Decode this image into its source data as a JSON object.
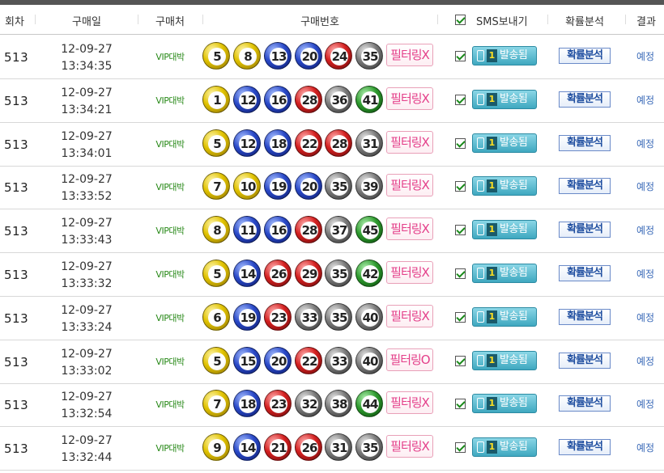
{
  "headers": {
    "round": "회차",
    "date": "구매일",
    "store": "구매처",
    "numbers": "구매번호",
    "sms": "SMS보내기",
    "analysis": "확률분석",
    "result": "결과"
  },
  "colors": {
    "yellow": "#e0c200",
    "blue": "#2a49c8",
    "red": "#d42020",
    "gray": "#7a7a7a",
    "green": "#2e9a2e",
    "filter_text": "#e4408a",
    "sms_button": "#3fa8c0",
    "store_text": "#2a8a1a",
    "result_text": "#3a6ab8"
  },
  "rows": [
    {
      "round": "513",
      "date": "12-09-27",
      "time": "13:34:35",
      "store": "VIP대박",
      "balls": [
        {
          "n": "5",
          "c": "y"
        },
        {
          "n": "8",
          "c": "y"
        },
        {
          "n": "13",
          "c": "b"
        },
        {
          "n": "20",
          "c": "b"
        },
        {
          "n": "24",
          "c": "r"
        },
        {
          "n": "35",
          "c": "k"
        }
      ],
      "filter": "필터링X",
      "sms_count": "1",
      "sms_label": "발송됨",
      "analysis": "확률분석",
      "result": "예정"
    },
    {
      "round": "513",
      "date": "12-09-27",
      "time": "13:34:21",
      "store": "VIP대박",
      "balls": [
        {
          "n": "1",
          "c": "y"
        },
        {
          "n": "12",
          "c": "b"
        },
        {
          "n": "16",
          "c": "b"
        },
        {
          "n": "28",
          "c": "r"
        },
        {
          "n": "36",
          "c": "k"
        },
        {
          "n": "41",
          "c": "g"
        }
      ],
      "filter": "필터링X",
      "sms_count": "1",
      "sms_label": "발송됨",
      "analysis": "확률분석",
      "result": "예정"
    },
    {
      "round": "513",
      "date": "12-09-27",
      "time": "13:34:01",
      "store": "VIP대박",
      "balls": [
        {
          "n": "5",
          "c": "y"
        },
        {
          "n": "12",
          "c": "b"
        },
        {
          "n": "18",
          "c": "b"
        },
        {
          "n": "22",
          "c": "r"
        },
        {
          "n": "28",
          "c": "r"
        },
        {
          "n": "31",
          "c": "k"
        }
      ],
      "filter": "필터링X",
      "sms_count": "1",
      "sms_label": "발송됨",
      "analysis": "확률분석",
      "result": "예정"
    },
    {
      "round": "513",
      "date": "12-09-27",
      "time": "13:33:52",
      "store": "VIP대박",
      "balls": [
        {
          "n": "7",
          "c": "y"
        },
        {
          "n": "10",
          "c": "y"
        },
        {
          "n": "19",
          "c": "b"
        },
        {
          "n": "20",
          "c": "b"
        },
        {
          "n": "35",
          "c": "k"
        },
        {
          "n": "39",
          "c": "k"
        }
      ],
      "filter": "필터링X",
      "sms_count": "1",
      "sms_label": "발송됨",
      "analysis": "확률분석",
      "result": "예정"
    },
    {
      "round": "513",
      "date": "12-09-27",
      "time": "13:33:43",
      "store": "VIP대박",
      "balls": [
        {
          "n": "8",
          "c": "y"
        },
        {
          "n": "11",
          "c": "b"
        },
        {
          "n": "16",
          "c": "b"
        },
        {
          "n": "28",
          "c": "r"
        },
        {
          "n": "37",
          "c": "k"
        },
        {
          "n": "45",
          "c": "g"
        }
      ],
      "filter": "필터링X",
      "sms_count": "1",
      "sms_label": "발송됨",
      "analysis": "확률분석",
      "result": "예정"
    },
    {
      "round": "513",
      "date": "12-09-27",
      "time": "13:33:32",
      "store": "VIP대박",
      "balls": [
        {
          "n": "5",
          "c": "y"
        },
        {
          "n": "14",
          "c": "b"
        },
        {
          "n": "26",
          "c": "r"
        },
        {
          "n": "29",
          "c": "r"
        },
        {
          "n": "35",
          "c": "k"
        },
        {
          "n": "42",
          "c": "g"
        }
      ],
      "filter": "필터링X",
      "sms_count": "1",
      "sms_label": "발송됨",
      "analysis": "확률분석",
      "result": "예정"
    },
    {
      "round": "513",
      "date": "12-09-27",
      "time": "13:33:24",
      "store": "VIP대박",
      "balls": [
        {
          "n": "6",
          "c": "y"
        },
        {
          "n": "19",
          "c": "b"
        },
        {
          "n": "23",
          "c": "r"
        },
        {
          "n": "33",
          "c": "k"
        },
        {
          "n": "35",
          "c": "k"
        },
        {
          "n": "40",
          "c": "k"
        }
      ],
      "filter": "필터링X",
      "sms_count": "1",
      "sms_label": "발송됨",
      "analysis": "확률분석",
      "result": "예정"
    },
    {
      "round": "513",
      "date": "12-09-27",
      "time": "13:33:02",
      "store": "VIP대박",
      "balls": [
        {
          "n": "5",
          "c": "y"
        },
        {
          "n": "15",
          "c": "b"
        },
        {
          "n": "20",
          "c": "b"
        },
        {
          "n": "22",
          "c": "r"
        },
        {
          "n": "33",
          "c": "k"
        },
        {
          "n": "40",
          "c": "k"
        }
      ],
      "filter": "필터링O",
      "sms_count": "1",
      "sms_label": "발송됨",
      "analysis": "확률분석",
      "result": "예정"
    },
    {
      "round": "513",
      "date": "12-09-27",
      "time": "13:32:54",
      "store": "VIP대박",
      "balls": [
        {
          "n": "7",
          "c": "y"
        },
        {
          "n": "18",
          "c": "b"
        },
        {
          "n": "23",
          "c": "r"
        },
        {
          "n": "32",
          "c": "k"
        },
        {
          "n": "38",
          "c": "k"
        },
        {
          "n": "44",
          "c": "g"
        }
      ],
      "filter": "필터링X",
      "sms_count": "1",
      "sms_label": "발송됨",
      "analysis": "확률분석",
      "result": "예정"
    },
    {
      "round": "513",
      "date": "12-09-27",
      "time": "13:32:44",
      "store": "VIP대박",
      "balls": [
        {
          "n": "9",
          "c": "y"
        },
        {
          "n": "14",
          "c": "b"
        },
        {
          "n": "21",
          "c": "r"
        },
        {
          "n": "26",
          "c": "r"
        },
        {
          "n": "31",
          "c": "k"
        },
        {
          "n": "35",
          "c": "k"
        }
      ],
      "filter": "필터링X",
      "sms_count": "1",
      "sms_label": "발송됨",
      "analysis": "확률분석",
      "result": "예정"
    }
  ]
}
